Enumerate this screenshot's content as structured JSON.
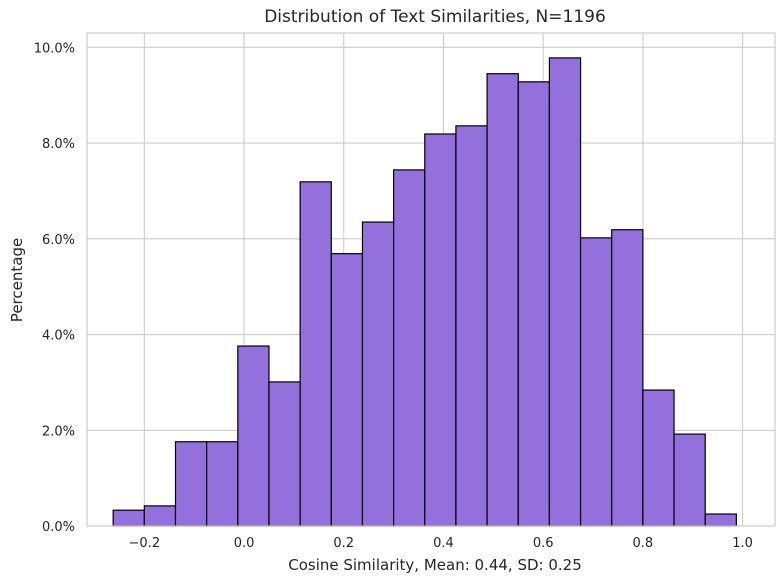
{
  "chart_data": {
    "type": "bar",
    "title": "Distribution of Text Similarities, N=1196",
    "xlabel": "Cosine Similarity, Mean: 0.44, SD: 0.25",
    "ylabel": "Percentage",
    "bar_color": "#9370db",
    "edge_color": "#000000",
    "grid": true,
    "xlim": [
      -0.315,
      1.065
    ],
    "ylim": [
      0,
      10.3
    ],
    "xticks": [
      -0.2,
      0.0,
      0.2,
      0.4,
      0.6,
      0.8,
      1.0
    ],
    "xtick_labels": [
      "−0.2",
      "0.0",
      "0.2",
      "0.4",
      "0.6",
      "0.8",
      "1.0"
    ],
    "yticks": [
      0,
      2,
      4,
      6,
      8,
      10
    ],
    "ytick_labels": [
      "0.0%",
      "2.0%",
      "4.0%",
      "6.0%",
      "8.0%",
      "10.0%"
    ],
    "bin_edges": [
      -0.2625,
      -0.2,
      -0.1375,
      -0.075,
      -0.0125,
      0.05,
      0.1125,
      0.175,
      0.2375,
      0.3,
      0.3625,
      0.425,
      0.4875,
      0.55,
      0.6125,
      0.675,
      0.7375,
      0.8,
      0.8625,
      0.925,
      0.9875
    ],
    "values": [
      0.33,
      0.42,
      1.76,
      1.76,
      3.76,
      3.01,
      7.19,
      5.69,
      6.35,
      7.44,
      8.19,
      8.36,
      9.45,
      9.28,
      9.78,
      6.02,
      6.19,
      2.84,
      1.92,
      0.25
    ]
  }
}
